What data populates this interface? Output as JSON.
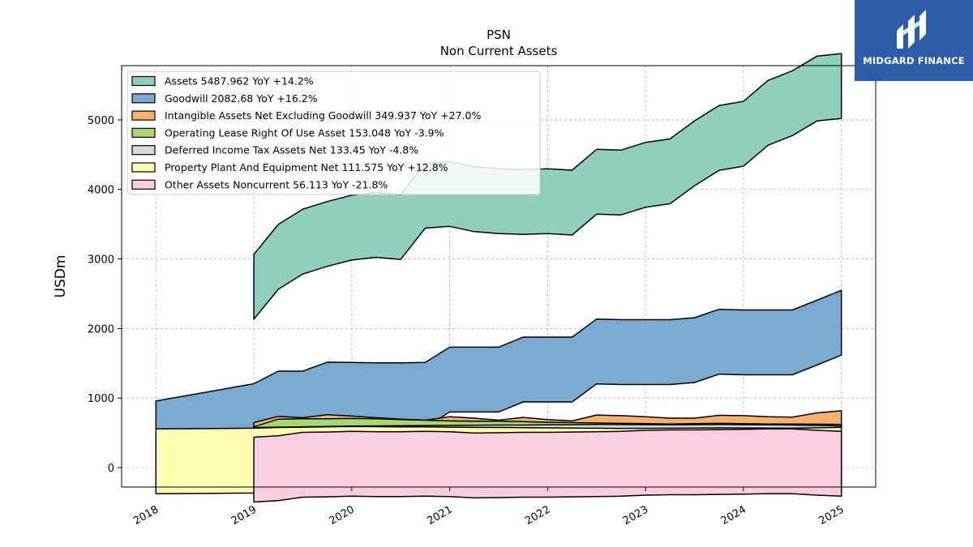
{
  "brand": {
    "name": "MIDGARD FINANCE"
  },
  "chart_data": {
    "type": "area",
    "title": "PSN",
    "subtitle": "Non Current  Assets",
    "xlabel": "",
    "ylabel": "USDm",
    "xlim": [
      2017.65,
      2025.35
    ],
    "ylim": [
      -280,
      5780
    ],
    "x_ticks": [
      2018,
      2019,
      2020,
      2021,
      2022,
      2023,
      2024,
      2025
    ],
    "x_tick_labels": [
      "2018",
      "2019",
      "2020",
      "2021",
      "2022",
      "2023",
      "2024",
      "2025"
    ],
    "y_ticks": [
      0,
      1000,
      2000,
      3000,
      4000,
      5000
    ],
    "y_tick_labels": [
      "0",
      "1000",
      "2000",
      "3000",
      "4000",
      "5000"
    ],
    "grid": true,
    "legend_position": "top-left",
    "band_width": 80,
    "series": [
      {
        "name": "Assets",
        "legend": "Assets  5487.962 YoY +14.2%",
        "color": "#8ecfc0",
        "x": [
          2019.0,
          2019.25,
          2019.5,
          2019.75,
          2020.0,
          2020.25,
          2020.5,
          2020.75,
          2021.0,
          2021.25,
          2021.5,
          2021.75,
          2022.0,
          2022.25,
          2022.5,
          2022.75,
          2023.0,
          2023.25,
          2023.5,
          2023.75,
          2024.0,
          2024.25,
          2024.5,
          2024.75,
          2025.0
        ],
        "values": [
          2600,
          3030,
          3250,
          3360,
          3450,
          3490,
          3460,
          3910,
          3935,
          3860,
          3830,
          3820,
          3830,
          3810,
          4110,
          4100,
          4210,
          4260,
          4520,
          4740,
          4800,
          5100,
          5240,
          5450,
          5488
        ]
      },
      {
        "name": "Goodwill",
        "legend": "Goodwill  2082.68 YoY +16.2%",
        "color": "#7aaad2",
        "x": [
          2018.0,
          2019.0,
          2019.25,
          2019.5,
          2019.75,
          2020.0,
          2020.25,
          2020.5,
          2020.75,
          2021.0,
          2021.25,
          2021.5,
          2021.75,
          2022.0,
          2022.25,
          2022.5,
          2022.75,
          2023.0,
          2023.25,
          2023.5,
          2023.75,
          2024.0,
          2024.25,
          2024.5,
          2024.75,
          2025.0
        ],
        "values": [
          490,
          740,
          920,
          920,
          1050,
          1045,
          1040,
          1040,
          1045,
          1265,
          1265,
          1265,
          1410,
          1410,
          1410,
          1670,
          1660,
          1660,
          1660,
          1690,
          1810,
          1800,
          1800,
          1800,
          1940,
          2083
        ]
      },
      {
        "name": "Intangible Assets Net Excluding Goodwill",
        "legend": "Intangible Assets Net Excluding Goodwill  349.937 YoY +27.0%",
        "color": "#f5b26b",
        "x": [
          2019.0,
          2019.25,
          2019.5,
          2019.75,
          2020.0,
          2020.25,
          2020.5,
          2020.75,
          2021.0,
          2021.25,
          2021.5,
          2021.75,
          2022.0,
          2022.25,
          2022.5,
          2022.75,
          2023.0,
          2023.25,
          2023.5,
          2023.75,
          2024.0,
          2024.25,
          2024.5,
          2024.75,
          2025.0
        ],
        "values": [
          180,
          270,
          250,
          295,
          275,
          250,
          230,
          215,
          265,
          245,
          215,
          255,
          225,
          205,
          290,
          280,
          265,
          245,
          245,
          285,
          280,
          265,
          260,
          320,
          350
        ]
      },
      {
        "name": "Operating Lease Right Of Use Asset",
        "legend": "Operating Lease Right Of Use Asset  153.048 YoY -3.9%",
        "color": "#a6d86e",
        "x": [
          2019.0,
          2019.25,
          2019.5,
          2019.75,
          2020.0,
          2020.25,
          2020.5,
          2020.75,
          2021.0,
          2021.25,
          2021.5,
          2021.75,
          2022.0,
          2022.25,
          2022.5,
          2022.75,
          2023.0,
          2023.25,
          2023.5,
          2023.75,
          2024.0,
          2024.25,
          2024.5,
          2024.75,
          2025.0
        ],
        "values": [
          120,
          230,
          235,
          235,
          240,
          235,
          225,
          215,
          205,
          200,
          200,
          195,
          185,
          180,
          175,
          170,
          165,
          160,
          165,
          170,
          165,
          160,
          160,
          158,
          153
        ]
      },
      {
        "name": "Deferred Income Tax Assets Net",
        "legend": "Deferred Income Tax Assets Net  133.45 YoY -4.8%",
        "color": "#d9d9d9",
        "x": [
          2019.0,
          2019.25,
          2019.5,
          2019.75,
          2020.0,
          2020.25,
          2020.5,
          2020.75,
          2021.0,
          2021.25,
          2021.5,
          2021.75,
          2022.0,
          2022.25,
          2022.5,
          2022.75,
          2023.0,
          2023.25,
          2023.5,
          2023.75,
          2024.0,
          2024.25,
          2024.5,
          2024.75,
          2025.0
        ],
        "values": [
          110,
          115,
          120,
          125,
          130,
          132,
          135,
          138,
          140,
          142,
          145,
          145,
          148,
          150,
          155,
          152,
          150,
          148,
          150,
          152,
          150,
          148,
          145,
          140,
          133
        ]
      },
      {
        "name": "Property Plant And Equipment Net",
        "legend": "Property Plant And Equipment Net  111.575 YoY +12.8%",
        "color": "#fdfdb2",
        "x": [
          2018.0,
          2019.0,
          2019.25,
          2019.5,
          2019.75,
          2020.0,
          2020.25,
          2020.5,
          2020.75,
          2021.0,
          2021.25,
          2021.5,
          2021.75,
          2022.0,
          2022.25,
          2022.5,
          2022.75,
          2023.0,
          2023.25,
          2023.5,
          2023.75,
          2024.0,
          2024.25,
          2024.5,
          2024.75,
          2025.0
        ],
        "values": [
          90,
          100,
          110,
          115,
          120,
          125,
          122,
          120,
          118,
          115,
          112,
          110,
          108,
          105,
          102,
          100,
          98,
          99,
          100,
          102,
          104,
          103,
          102,
          100,
          106,
          112
        ]
      },
      {
        "name": "Other Assets Noncurrent",
        "legend": "Other Assets Noncurrent  56.113 YoY -21.8%",
        "color": "#fbcde2",
        "x": [
          2019.0,
          2019.25,
          2019.5,
          2019.75,
          2020.0,
          2020.25,
          2020.5,
          2020.75,
          2021.0,
          2021.25,
          2021.5,
          2021.75,
          2022.0,
          2022.25,
          2022.5,
          2022.75,
          2023.0,
          2023.25,
          2023.5,
          2023.75,
          2024.0,
          2024.25,
          2024.5,
          2024.75,
          2025.0
        ],
        "values": [
          -30,
          -10,
          40,
          45,
          55,
          50,
          50,
          55,
          50,
          30,
          35,
          40,
          40,
          45,
          50,
          55,
          70,
          75,
          75,
          80,
          85,
          90,
          90,
          70,
          56
        ]
      }
    ]
  }
}
